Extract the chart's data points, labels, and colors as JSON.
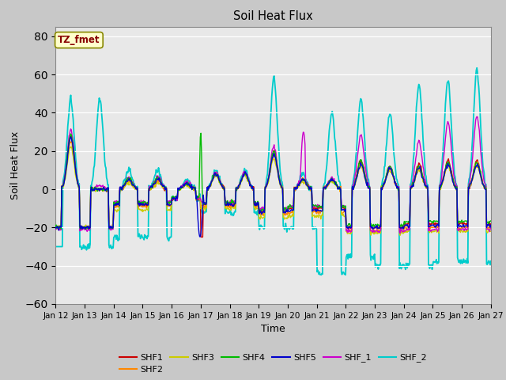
{
  "title": "Soil Heat Flux",
  "xlabel": "Time",
  "ylabel": "Soil Heat Flux",
  "ylim": [
    -60,
    85
  ],
  "yticks": [
    -60,
    -40,
    -20,
    0,
    20,
    40,
    60,
    80
  ],
  "series_colors": {
    "SHF1": "#cc0000",
    "SHF2": "#ff8800",
    "SHF3": "#cccc00",
    "SHF4": "#00bb00",
    "SHF5": "#0000cc",
    "SHF_1": "#cc00cc",
    "SHF_2": "#00cccc"
  },
  "tz_fmet_label": "TZ_fmet",
  "x_tick_labels": [
    "Jan 12",
    "Jan 13",
    "Jan 14",
    "Jan 15",
    "Jan 16",
    "Jan 17",
    "Jan 18",
    "Jan 19",
    "Jan 20",
    "Jan 21",
    "Jan 22",
    "Jan 23",
    "Jan 24",
    "Jan 25",
    "Jan 26",
    "Jan 27"
  ]
}
